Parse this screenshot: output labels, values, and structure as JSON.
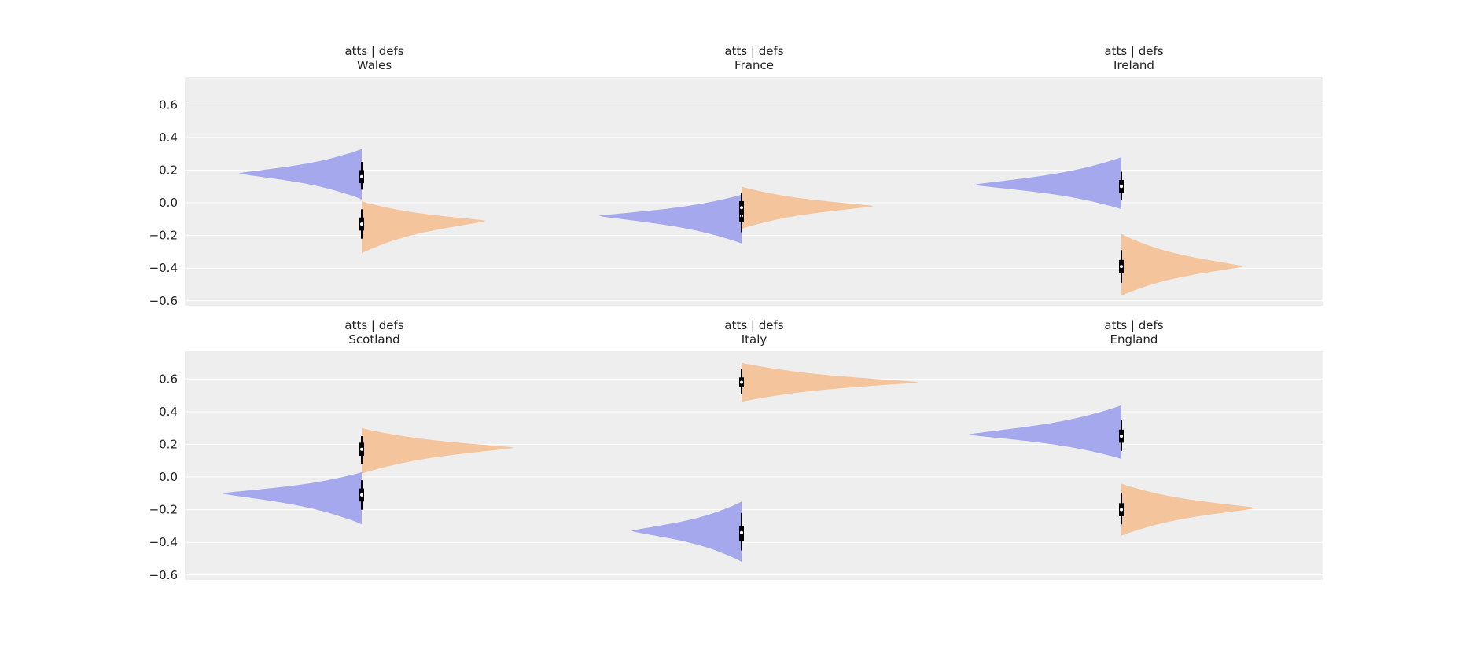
{
  "chart_data": {
    "type": "violin",
    "layout": "2x3 grid, shared y-axis",
    "ylim": [
      -0.63,
      0.77
    ],
    "y_ticks": [
      "0.6",
      "0.4",
      "0.2",
      "0.0",
      "−0.2",
      "−0.4",
      "−0.6"
    ],
    "y_tick_values": [
      0.6,
      0.4,
      0.2,
      0.0,
      -0.2,
      -0.4,
      -0.6
    ],
    "grid": "on (horizontal, white)",
    "background": "#eeeeee",
    "colors": {
      "atts": "#a5a8ec",
      "defs": "#f4c49d",
      "interval": "#000000",
      "median": "#ffffff"
    },
    "panels": [
      {
        "title_line1": "atts | defs",
        "title_line2": "Wales",
        "atts": {
          "y_min": 0.02,
          "y_max": 0.33,
          "mode": 0.18,
          "median": 0.16,
          "hdi_inner": [
            0.12,
            0.2
          ],
          "hdi_outer": [
            0.08,
            0.25
          ],
          "max_width": 0.95
        },
        "defs": {
          "y_min": -0.31,
          "y_max": 0.01,
          "mode": -0.11,
          "median": -0.13,
          "hdi_inner": [
            -0.17,
            -0.09
          ],
          "hdi_outer": [
            -0.22,
            -0.04
          ],
          "max_width": 0.96
        }
      },
      {
        "title_line1": "atts | defs",
        "title_line2": "France",
        "atts": {
          "y_min": -0.25,
          "y_max": 0.05,
          "mode": -0.08,
          "median": -0.08,
          "hdi_inner": [
            -0.12,
            -0.04
          ],
          "hdi_outer": [
            -0.18,
            0.01
          ],
          "max_width": 1.1
        },
        "defs": {
          "y_min": -0.16,
          "y_max": 0.1,
          "mode": -0.02,
          "median": -0.03,
          "hdi_inner": [
            -0.07,
            0.01
          ],
          "hdi_outer": [
            -0.12,
            0.06
          ],
          "max_width": 1.02
        }
      },
      {
        "title_line1": "atts | defs",
        "title_line2": "Ireland",
        "atts": {
          "y_min": -0.04,
          "y_max": 0.28,
          "mode": 0.11,
          "median": 0.1,
          "hdi_inner": [
            0.06,
            0.14
          ],
          "hdi_outer": [
            0.02,
            0.19
          ],
          "max_width": 1.14
        },
        "defs": {
          "y_min": -0.57,
          "y_max": -0.19,
          "mode": -0.39,
          "median": -0.39,
          "hdi_inner": [
            -0.43,
            -0.35
          ],
          "hdi_outer": [
            -0.49,
            -0.29
          ],
          "max_width": 0.94
        }
      },
      {
        "title_line1": "atts | defs",
        "title_line2": "Scotland",
        "atts": {
          "y_min": -0.29,
          "y_max": 0.03,
          "mode": -0.1,
          "median": -0.11,
          "hdi_inner": [
            -0.15,
            -0.07
          ],
          "hdi_outer": [
            -0.2,
            -0.02
          ],
          "max_width": 1.08
        },
        "defs": {
          "y_min": 0.02,
          "y_max": 0.3,
          "mode": 0.18,
          "median": 0.17,
          "hdi_inner": [
            0.13,
            0.21
          ],
          "hdi_outer": [
            0.08,
            0.25
          ],
          "max_width": 1.18
        }
      },
      {
        "title_line1": "atts | defs",
        "title_line2": "Italy",
        "atts": {
          "y_min": -0.52,
          "y_max": -0.15,
          "mode": -0.33,
          "median": -0.34,
          "hdi_inner": [
            -0.39,
            -0.3
          ],
          "hdi_outer": [
            -0.45,
            -0.22
          ],
          "max_width": 0.85
        },
        "defs": {
          "y_min": 0.46,
          "y_max": 0.7,
          "mode": 0.58,
          "median": 0.58,
          "hdi_inner": [
            0.55,
            0.61
          ],
          "hdi_outer": [
            0.51,
            0.66
          ],
          "max_width": 1.37
        }
      },
      {
        "title_line1": "atts | defs",
        "title_line2": "England",
        "atts": {
          "y_min": 0.11,
          "y_max": 0.44,
          "mode": 0.26,
          "median": 0.25,
          "hdi_inner": [
            0.21,
            0.29
          ],
          "hdi_outer": [
            0.16,
            0.35
          ],
          "max_width": 1.18
        },
        "defs": {
          "y_min": -0.36,
          "y_max": -0.04,
          "mode": -0.19,
          "median": -0.2,
          "hdi_inner": [
            -0.24,
            -0.16
          ],
          "hdi_outer": [
            -0.29,
            -0.1
          ],
          "max_width": 1.04
        }
      }
    ]
  }
}
